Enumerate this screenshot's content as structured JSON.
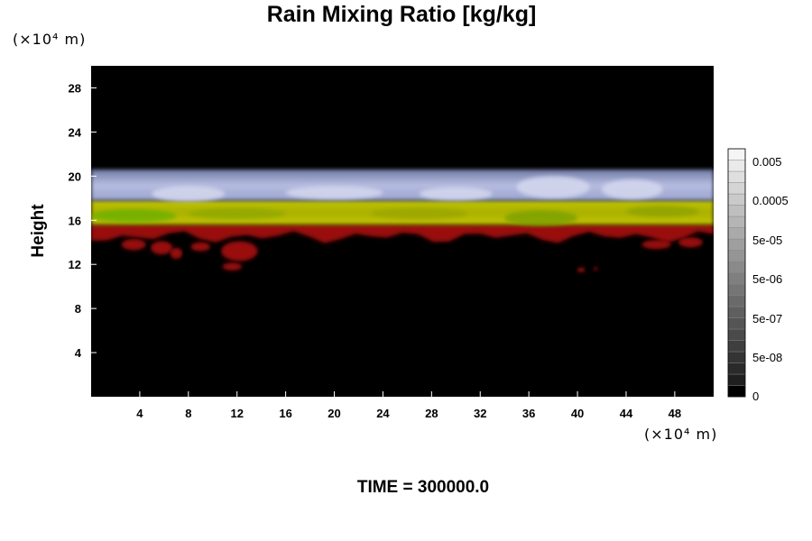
{
  "chart_data": {
    "type": "heatmap",
    "title": "Rain Mixing Ratio [kg/kg]",
    "ylabel": "Height",
    "xlabel": "",
    "x_unit": "(×10⁴ m)",
    "y_unit": "(×10⁴ m)",
    "xlim": [
      0,
      51.2
    ],
    "ylim": [
      0,
      30
    ],
    "x_ticks": [
      4,
      8,
      12,
      16,
      20,
      24,
      28,
      32,
      36,
      40,
      44,
      48
    ],
    "y_ticks": [
      4,
      8,
      12,
      16,
      20,
      24,
      28
    ],
    "background": "#000000",
    "layers": [
      {
        "band": "upper",
        "y_range": [
          17.8,
          20.6
        ],
        "color": "#a8b0d8"
      },
      {
        "band": "middle",
        "y_range": [
          15.6,
          17.8
        ],
        "color": "#b4b800"
      },
      {
        "band": "lower",
        "y_range": [
          14.5,
          15.6
        ],
        "color": "#9a1010"
      }
    ],
    "colorbar": {
      "levels": 22,
      "tick_labels": [
        "0.005",
        "0.0005",
        "5e-05",
        "5e-06",
        "5e-07",
        "5e-08",
        "0"
      ],
      "colors_dark_to_light": [
        "#000000",
        "#ffffff"
      ]
    }
  },
  "footer": {
    "time_label": "TIME = 300000.0"
  }
}
